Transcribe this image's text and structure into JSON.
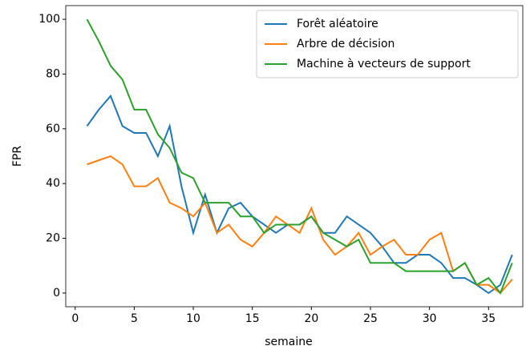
{
  "chart_data": {
    "type": "line",
    "xlabel": "semaine",
    "ylabel": "FPR",
    "x": [
      1,
      2,
      3,
      4,
      5,
      6,
      7,
      8,
      9,
      10,
      11,
      12,
      13,
      14,
      15,
      16,
      17,
      18,
      19,
      20,
      21,
      22,
      23,
      24,
      25,
      26,
      27,
      28,
      29,
      30,
      31,
      32,
      33,
      34,
      35,
      36,
      37
    ],
    "series": [
      {
        "name": "Forêt aléatoire",
        "color": "#1f77b4",
        "values": [
          61,
          67,
          72,
          61,
          58.5,
          58.5,
          50,
          61,
          39,
          22,
          36,
          22,
          31,
          33,
          28,
          25,
          22,
          25,
          25,
          28,
          22,
          22,
          28,
          25,
          22,
          17,
          11,
          11,
          14,
          14,
          11,
          5.5,
          5.5,
          3,
          0,
          3,
          14
        ]
      },
      {
        "name": "Arbre de décision",
        "color": "#ff7f0e",
        "values": [
          47,
          48.5,
          50,
          47,
          39,
          39,
          42,
          33,
          31,
          28,
          33,
          22,
          25,
          19.5,
          17,
          22,
          28,
          25,
          22,
          31,
          19.5,
          14,
          17,
          22,
          14,
          17,
          19.5,
          14,
          14,
          19.5,
          22,
          8,
          11,
          3,
          3,
          0,
          5
        ]
      },
      {
        "name": "Machine à vecteurs de support",
        "color": "#2ca02c",
        "values": [
          100,
          92,
          83,
          78,
          67,
          67,
          58,
          53,
          44,
          42,
          33,
          33,
          33,
          28,
          28,
          22,
          25,
          25,
          25,
          28,
          22,
          19.5,
          17,
          19.5,
          11,
          11,
          11,
          8,
          8,
          8,
          8,
          8,
          11,
          3,
          5.5,
          0,
          11
        ]
      }
    ],
    "xlim": [
      -0.8,
      37.9
    ],
    "ylim": [
      -5,
      105
    ],
    "xticks": [
      0,
      5,
      10,
      15,
      20,
      25,
      30,
      35
    ],
    "yticks": [
      0,
      20,
      40,
      60,
      80,
      100
    ],
    "legend": "upper right"
  }
}
